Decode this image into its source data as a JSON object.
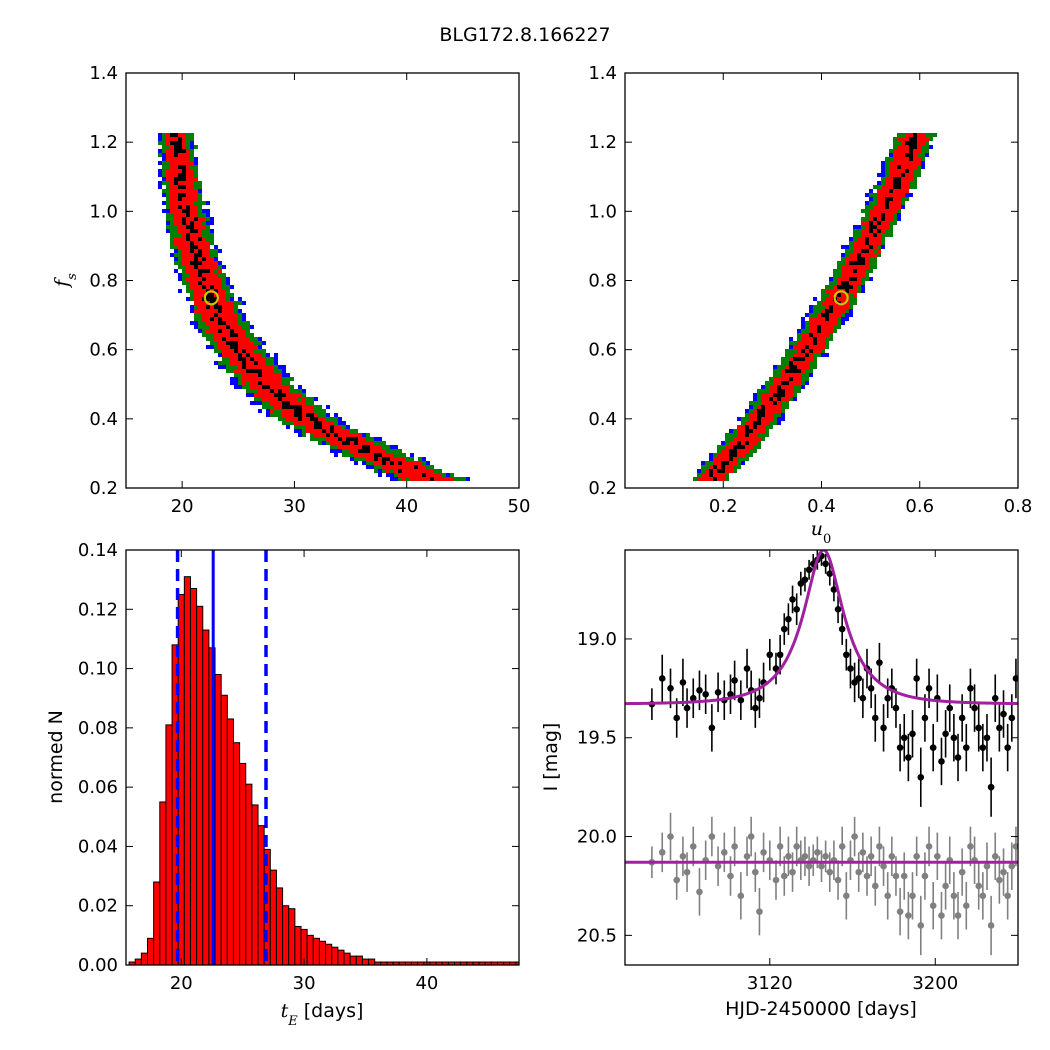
{
  "figure": {
    "title": "BLG172.8.166227"
  },
  "chart_data": [
    {
      "type": "heatmap",
      "name": "fs-vs-tE",
      "xlabel": "",
      "ylabel": "f_s",
      "xlim": [
        15,
        50
      ],
      "ylim": [
        0.2,
        1.4
      ],
      "xticks": [
        "20",
        "30",
        "40",
        "50"
      ],
      "yticks": [
        "0.2",
        "0.4",
        "0.6",
        "0.8",
        "1.0",
        "1.2",
        "1.4"
      ],
      "confidence_colors": [
        "#0000ff",
        "#008000",
        "#ff0000",
        "#000000"
      ],
      "ridge_fs": [
        0.22,
        0.3,
        0.4,
        0.5,
        0.6,
        0.7,
        0.8,
        0.9,
        1.0,
        1.1,
        1.22
      ],
      "ridge_tE": [
        42.5,
        37.0,
        31.0,
        27.5,
        25.0,
        23.2,
        22.0,
        21.0,
        20.4,
        19.9,
        19.5
      ],
      "best_fit": {
        "tE": 22.6,
        "fs": 0.75,
        "marker_color": "#c8c800"
      }
    },
    {
      "type": "heatmap",
      "name": "fs-vs-u0",
      "xlabel": "u_0",
      "ylabel": "",
      "xlim": [
        0.0,
        0.8
      ],
      "ylim": [
        0.2,
        1.4
      ],
      "xticks": [
        "0.2",
        "0.4",
        "0.6",
        "0.8"
      ],
      "yticks": [
        "0.2",
        "0.4",
        "0.6",
        "0.8",
        "1.0",
        "1.2",
        "1.4"
      ],
      "confidence_colors": [
        "#0000ff",
        "#008000",
        "#ff0000",
        "#000000"
      ],
      "ridge_fs": [
        0.22,
        0.3,
        0.4,
        0.5,
        0.6,
        0.7,
        0.8,
        0.9,
        1.0,
        1.1,
        1.22
      ],
      "ridge_u0": [
        0.17,
        0.22,
        0.275,
        0.325,
        0.37,
        0.415,
        0.455,
        0.49,
        0.525,
        0.56,
        0.59
      ],
      "best_fit": {
        "u0": 0.44,
        "fs": 0.75,
        "marker_color": "#c8c800"
      }
    },
    {
      "type": "bar",
      "name": "tE-histogram",
      "xlabel": "t_E [days]",
      "ylabel": "normed N",
      "xlim": [
        15.5,
        47.5
      ],
      "ylim": [
        0.0,
        0.14
      ],
      "xticks": [
        "20",
        "30",
        "40"
      ],
      "yticks": [
        "0.00",
        "0.02",
        "0.04",
        "0.06",
        "0.08",
        "0.10",
        "0.12",
        "0.14"
      ],
      "bar_color": "#ff0000",
      "bin_start": 15.75,
      "bin_width": 0.5,
      "values": [
        0.001,
        0.002,
        0.004,
        0.009,
        0.028,
        0.055,
        0.081,
        0.108,
        0.125,
        0.131,
        0.127,
        0.121,
        0.113,
        0.107,
        0.098,
        0.091,
        0.083,
        0.075,
        0.068,
        0.061,
        0.054,
        0.047,
        0.039,
        0.032,
        0.026,
        0.02,
        0.019,
        0.013,
        0.012,
        0.01,
        0.009,
        0.008,
        0.007,
        0.006,
        0.005,
        0.004,
        0.003,
        0.003,
        0.002,
        0.002,
        0.001,
        0.001,
        0.001,
        0.001,
        0.001,
        0.001,
        0.001,
        0.001,
        0.001,
        0.001,
        0.001,
        0.001,
        0.001,
        0.001,
        0.001,
        0.001,
        0.001,
        0.001,
        0.001,
        0.001,
        0.001,
        0.001,
        0.001,
        0.001
      ],
      "best_value": 22.6,
      "interval_low": 19.7,
      "interval_high": 26.9,
      "line_color": "#0000ff"
    },
    {
      "type": "scatter",
      "name": "light-curve",
      "xlabel": "HJD-2450000 [days]",
      "ylabel": "I [mag]",
      "xlim": [
        3050,
        3240
      ],
      "ylim": [
        20.65,
        18.55
      ],
      "xticks": [
        "3120",
        "3200"
      ],
      "yticks": [
        "19.0",
        "19.5",
        "20.0",
        "20.5"
      ],
      "model": {
        "t0": 3146,
        "baseline": 19.33,
        "peak": 18.55,
        "tE": 22.6,
        "u0": 0.44,
        "color": "#a020a0"
      },
      "residual_baseline": 20.13,
      "point_colors": {
        "data": "#000000",
        "residual": "#808080"
      },
      "data_points": [
        {
          "x": 3063,
          "y": 19.33,
          "e": 0.08
        },
        {
          "x": 3068,
          "y": 19.2,
          "e": 0.12
        },
        {
          "x": 3072,
          "y": 19.25,
          "e": 0.1
        },
        {
          "x": 3075,
          "y": 19.4,
          "e": 0.1
        },
        {
          "x": 3078,
          "y": 19.22,
          "e": 0.12
        },
        {
          "x": 3080,
          "y": 19.35,
          "e": 0.1
        },
        {
          "x": 3083,
          "y": 19.3,
          "e": 0.1
        },
        {
          "x": 3086,
          "y": 19.26,
          "e": 0.1
        },
        {
          "x": 3089,
          "y": 19.28,
          "e": 0.1
        },
        {
          "x": 3092,
          "y": 19.45,
          "e": 0.12
        },
        {
          "x": 3095,
          "y": 19.27,
          "e": 0.1
        },
        {
          "x": 3098,
          "y": 19.31,
          "e": 0.1
        },
        {
          "x": 3101,
          "y": 19.28,
          "e": 0.1
        },
        {
          "x": 3103,
          "y": 19.21,
          "e": 0.1
        },
        {
          "x": 3106,
          "y": 19.31,
          "e": 0.1
        },
        {
          "x": 3109,
          "y": 19.15,
          "e": 0.1
        },
        {
          "x": 3111,
          "y": 19.26,
          "e": 0.1
        },
        {
          "x": 3113,
          "y": 19.35,
          "e": 0.1
        },
        {
          "x": 3115,
          "y": 19.3,
          "e": 0.1
        },
        {
          "x": 3117,
          "y": 19.22,
          "e": 0.1
        },
        {
          "x": 3120,
          "y": 19.08,
          "e": 0.08
        },
        {
          "x": 3123,
          "y": 19.15,
          "e": 0.08
        },
        {
          "x": 3125,
          "y": 19.08,
          "e": 0.1
        },
        {
          "x": 3127,
          "y": 18.95,
          "e": 0.08
        },
        {
          "x": 3129,
          "y": 18.9,
          "e": 0.08
        },
        {
          "x": 3131,
          "y": 18.8,
          "e": 0.07
        },
        {
          "x": 3133,
          "y": 18.85,
          "e": 0.08
        },
        {
          "x": 3135,
          "y": 18.72,
          "e": 0.06
        },
        {
          "x": 3137,
          "y": 18.7,
          "e": 0.06
        },
        {
          "x": 3139,
          "y": 18.65,
          "e": 0.05
        },
        {
          "x": 3141,
          "y": 18.62,
          "e": 0.05
        },
        {
          "x": 3143,
          "y": 18.6,
          "e": 0.05
        },
        {
          "x": 3145,
          "y": 18.58,
          "e": 0.05
        },
        {
          "x": 3147,
          "y": 18.62,
          "e": 0.05
        },
        {
          "x": 3149,
          "y": 18.67,
          "e": 0.06
        },
        {
          "x": 3151,
          "y": 18.75,
          "e": 0.06
        },
        {
          "x": 3153,
          "y": 18.85,
          "e": 0.07
        },
        {
          "x": 3155,
          "y": 18.95,
          "e": 0.08
        },
        {
          "x": 3157,
          "y": 19.08,
          "e": 0.08
        },
        {
          "x": 3159,
          "y": 19.15,
          "e": 0.1
        },
        {
          "x": 3161,
          "y": 19.22,
          "e": 0.1
        },
        {
          "x": 3163,
          "y": 19.2,
          "e": 0.1
        },
        {
          "x": 3165,
          "y": 19.3,
          "e": 0.1
        },
        {
          "x": 3167,
          "y": 19.15,
          "e": 0.1
        },
        {
          "x": 3169,
          "y": 19.25,
          "e": 0.1
        },
        {
          "x": 3171,
          "y": 19.4,
          "e": 0.12
        },
        {
          "x": 3173,
          "y": 19.12,
          "e": 0.1
        },
        {
          "x": 3175,
          "y": 19.45,
          "e": 0.12
        },
        {
          "x": 3177,
          "y": 19.3,
          "e": 0.1
        },
        {
          "x": 3179,
          "y": 19.25,
          "e": 0.1
        },
        {
          "x": 3181,
          "y": 19.35,
          "e": 0.1
        },
        {
          "x": 3183,
          "y": 19.55,
          "e": 0.12
        },
        {
          "x": 3185,
          "y": 19.5,
          "e": 0.12
        },
        {
          "x": 3187,
          "y": 19.6,
          "e": 0.12
        },
        {
          "x": 3189,
          "y": 19.48,
          "e": 0.12
        },
        {
          "x": 3191,
          "y": 19.2,
          "e": 0.1
        },
        {
          "x": 3193,
          "y": 19.7,
          "e": 0.15
        },
        {
          "x": 3195,
          "y": 19.4,
          "e": 0.12
        },
        {
          "x": 3197,
          "y": 19.25,
          "e": 0.1
        },
        {
          "x": 3199,
          "y": 19.55,
          "e": 0.12
        },
        {
          "x": 3201,
          "y": 19.3,
          "e": 0.12
        },
        {
          "x": 3203,
          "y": 19.62,
          "e": 0.12
        },
        {
          "x": 3205,
          "y": 19.48,
          "e": 0.12
        },
        {
          "x": 3207,
          "y": 19.35,
          "e": 0.12
        },
        {
          "x": 3209,
          "y": 19.5,
          "e": 0.12
        },
        {
          "x": 3211,
          "y": 19.6,
          "e": 0.12
        },
        {
          "x": 3213,
          "y": 19.4,
          "e": 0.12
        },
        {
          "x": 3215,
          "y": 19.55,
          "e": 0.12
        },
        {
          "x": 3217,
          "y": 19.25,
          "e": 0.1
        },
        {
          "x": 3219,
          "y": 19.35,
          "e": 0.12
        },
        {
          "x": 3221,
          "y": 19.45,
          "e": 0.12
        },
        {
          "x": 3223,
          "y": 19.55,
          "e": 0.12
        },
        {
          "x": 3225,
          "y": 19.5,
          "e": 0.12
        },
        {
          "x": 3227,
          "y": 19.75,
          "e": 0.15
        },
        {
          "x": 3229,
          "y": 19.3,
          "e": 0.12
        },
        {
          "x": 3231,
          "y": 19.45,
          "e": 0.12
        },
        {
          "x": 3233,
          "y": 19.38,
          "e": 0.12
        },
        {
          "x": 3235,
          "y": 19.55,
          "e": 0.12
        },
        {
          "x": 3237,
          "y": 19.4,
          "e": 0.12
        },
        {
          "x": 3239,
          "y": 19.2,
          "e": 0.1
        }
      ],
      "residual_points": [
        {
          "x": 3063,
          "y": 20.13,
          "e": 0.08
        },
        {
          "x": 3068,
          "y": 20.08,
          "e": 0.1
        },
        {
          "x": 3072,
          "y": 20.0,
          "e": 0.12
        },
        {
          "x": 3075,
          "y": 20.22,
          "e": 0.1
        },
        {
          "x": 3078,
          "y": 20.1,
          "e": 0.1
        },
        {
          "x": 3080,
          "y": 20.18,
          "e": 0.1
        },
        {
          "x": 3083,
          "y": 20.05,
          "e": 0.1
        },
        {
          "x": 3086,
          "y": 20.28,
          "e": 0.12
        },
        {
          "x": 3089,
          "y": 20.12,
          "e": 0.1
        },
        {
          "x": 3092,
          "y": 20.0,
          "e": 0.1
        },
        {
          "x": 3095,
          "y": 20.15,
          "e": 0.1
        },
        {
          "x": 3098,
          "y": 20.08,
          "e": 0.1
        },
        {
          "x": 3101,
          "y": 20.2,
          "e": 0.1
        },
        {
          "x": 3103,
          "y": 20.05,
          "e": 0.1
        },
        {
          "x": 3106,
          "y": 20.3,
          "e": 0.12
        },
        {
          "x": 3109,
          "y": 20.1,
          "e": 0.1
        },
        {
          "x": 3111,
          "y": 20.0,
          "e": 0.1
        },
        {
          "x": 3113,
          "y": 20.18,
          "e": 0.1
        },
        {
          "x": 3115,
          "y": 20.38,
          "e": 0.12
        },
        {
          "x": 3117,
          "y": 20.08,
          "e": 0.1
        },
        {
          "x": 3120,
          "y": 20.12,
          "e": 0.1
        },
        {
          "x": 3123,
          "y": 20.22,
          "e": 0.1
        },
        {
          "x": 3125,
          "y": 20.05,
          "e": 0.1
        },
        {
          "x": 3127,
          "y": 20.2,
          "e": 0.1
        },
        {
          "x": 3129,
          "y": 20.1,
          "e": 0.1
        },
        {
          "x": 3131,
          "y": 20.18,
          "e": 0.1
        },
        {
          "x": 3133,
          "y": 20.05,
          "e": 0.1
        },
        {
          "x": 3135,
          "y": 20.12,
          "e": 0.1
        },
        {
          "x": 3137,
          "y": 20.1,
          "e": 0.1
        },
        {
          "x": 3139,
          "y": 20.15,
          "e": 0.1
        },
        {
          "x": 3141,
          "y": 20.12,
          "e": 0.08
        },
        {
          "x": 3143,
          "y": 20.08,
          "e": 0.08
        },
        {
          "x": 3145,
          "y": 20.15,
          "e": 0.08
        },
        {
          "x": 3147,
          "y": 20.1,
          "e": 0.08
        },
        {
          "x": 3149,
          "y": 20.18,
          "e": 0.1
        },
        {
          "x": 3151,
          "y": 20.12,
          "e": 0.1
        },
        {
          "x": 3153,
          "y": 20.22,
          "e": 0.1
        },
        {
          "x": 3155,
          "y": 20.05,
          "e": 0.1
        },
        {
          "x": 3157,
          "y": 20.3,
          "e": 0.12
        },
        {
          "x": 3159,
          "y": 20.12,
          "e": 0.1
        },
        {
          "x": 3161,
          "y": 20.0,
          "e": 0.1
        },
        {
          "x": 3163,
          "y": 20.18,
          "e": 0.1
        },
        {
          "x": 3165,
          "y": 20.08,
          "e": 0.1
        },
        {
          "x": 3167,
          "y": 20.2,
          "e": 0.1
        },
        {
          "x": 3169,
          "y": 20.1,
          "e": 0.1
        },
        {
          "x": 3171,
          "y": 20.25,
          "e": 0.1
        },
        {
          "x": 3173,
          "y": 20.05,
          "e": 0.1
        },
        {
          "x": 3175,
          "y": 20.15,
          "e": 0.1
        },
        {
          "x": 3177,
          "y": 20.3,
          "e": 0.12
        },
        {
          "x": 3179,
          "y": 20.1,
          "e": 0.1
        },
        {
          "x": 3181,
          "y": 20.2,
          "e": 0.1
        },
        {
          "x": 3183,
          "y": 20.38,
          "e": 0.12
        },
        {
          "x": 3185,
          "y": 20.2,
          "e": 0.12
        },
        {
          "x": 3187,
          "y": 20.4,
          "e": 0.12
        },
        {
          "x": 3189,
          "y": 20.3,
          "e": 0.12
        },
        {
          "x": 3191,
          "y": 20.1,
          "e": 0.1
        },
        {
          "x": 3193,
          "y": 20.45,
          "e": 0.15
        },
        {
          "x": 3195,
          "y": 20.2,
          "e": 0.12
        },
        {
          "x": 3197,
          "y": 20.05,
          "e": 0.1
        },
        {
          "x": 3199,
          "y": 20.35,
          "e": 0.12
        },
        {
          "x": 3201,
          "y": 20.1,
          "e": 0.12
        },
        {
          "x": 3203,
          "y": 20.4,
          "e": 0.12
        },
        {
          "x": 3205,
          "y": 20.25,
          "e": 0.12
        },
        {
          "x": 3207,
          "y": 20.12,
          "e": 0.12
        },
        {
          "x": 3209,
          "y": 20.3,
          "e": 0.12
        },
        {
          "x": 3211,
          "y": 20.4,
          "e": 0.12
        },
        {
          "x": 3213,
          "y": 20.18,
          "e": 0.12
        },
        {
          "x": 3215,
          "y": 20.35,
          "e": 0.12
        },
        {
          "x": 3217,
          "y": 20.05,
          "e": 0.1
        },
        {
          "x": 3219,
          "y": 20.12,
          "e": 0.12
        },
        {
          "x": 3221,
          "y": 20.25,
          "e": 0.12
        },
        {
          "x": 3223,
          "y": 20.3,
          "e": 0.12
        },
        {
          "x": 3225,
          "y": 20.15,
          "e": 0.12
        },
        {
          "x": 3227,
          "y": 20.45,
          "e": 0.15
        },
        {
          "x": 3229,
          "y": 20.1,
          "e": 0.12
        },
        {
          "x": 3231,
          "y": 20.22,
          "e": 0.12
        },
        {
          "x": 3233,
          "y": 20.18,
          "e": 0.12
        },
        {
          "x": 3235,
          "y": 20.3,
          "e": 0.12
        },
        {
          "x": 3237,
          "y": 20.15,
          "e": 0.12
        },
        {
          "x": 3239,
          "y": 20.05,
          "e": 0.1
        }
      ]
    }
  ]
}
